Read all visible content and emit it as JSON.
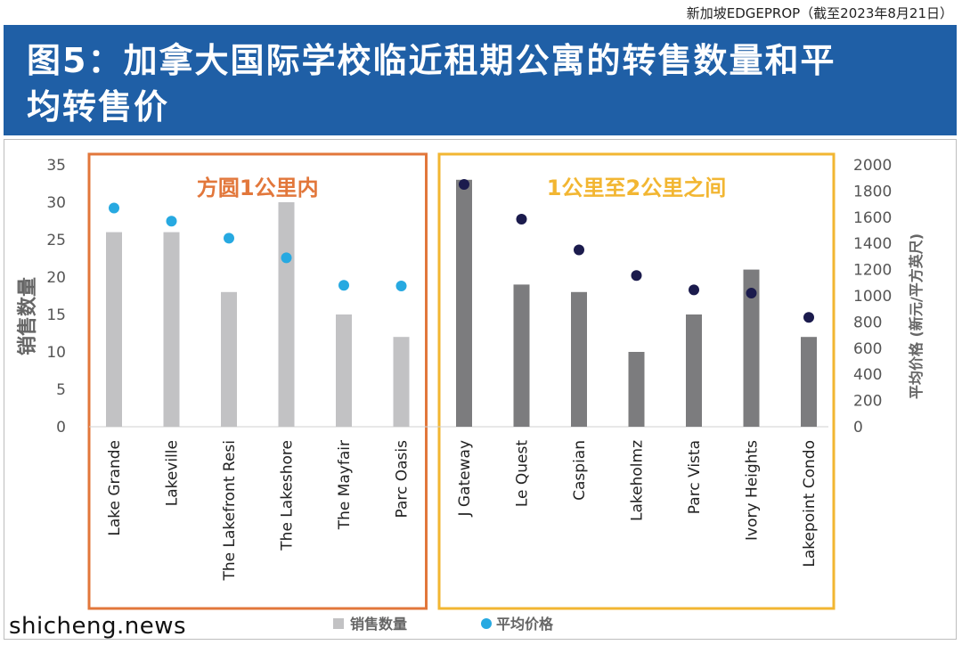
{
  "header": {
    "source": "新加坡EDGEPROP（截至2023年8月21日）",
    "title_line1": "图5：加拿大国际学校临近租期公寓的转售数量和平",
    "title_line2": "均转售价"
  },
  "watermark": "shicheng.news",
  "colors": {
    "banner": "#1f5fa6",
    "bar_near": "#c2c2c4",
    "bar_far": "#7c7c7e",
    "dot_near": "#27a9e1",
    "dot_far": "#1b1b4d",
    "box_near": "#e2773b",
    "box_far": "#f2b632"
  },
  "chart_data": {
    "type": "bar",
    "categories": [
      "Lake Grande",
      "Lakeville",
      "The Lakefront Resi",
      "The Lakeshore",
      "The Mayfair",
      "Parc Oasis",
      "J Gateway",
      "Le Quest",
      "Caspian",
      "Lakeholmz",
      "Parc Vista",
      "Ivory Heights",
      "Lakepoint Condo"
    ],
    "series": [
      {
        "name": "销售数量",
        "type": "bar",
        "axis": "left",
        "values": [
          26,
          26,
          18,
          30,
          15,
          12,
          33,
          19,
          18,
          10,
          15,
          21,
          12
        ]
      },
      {
        "name": "平均价格",
        "type": "scatter",
        "axis": "right",
        "values": [
          1670,
          1570,
          1440,
          1290,
          1080,
          1075,
          1850,
          1585,
          1350,
          1155,
          1045,
          1020,
          835
        ]
      }
    ],
    "groups": [
      {
        "label": "方圆1公里内",
        "from": 0,
        "to": 5
      },
      {
        "label": "1公里至2公里之间",
        "from": 6,
        "to": 12
      }
    ],
    "ylabel": "销售数量",
    "ylabel_right": "平均价格 (新元/平方英尺)",
    "ylim": [
      0,
      35
    ],
    "ylim_right": [
      0,
      2000
    ],
    "yticks": [
      "0",
      "5",
      "10",
      "15",
      "20",
      "25",
      "30",
      "35"
    ],
    "yticks_right": [
      "0",
      "200",
      "400",
      "600",
      "800",
      "1000",
      "1200",
      "1400",
      "1600",
      "1800",
      "2000"
    ],
    "grid": false,
    "legend_position": "bottom"
  }
}
